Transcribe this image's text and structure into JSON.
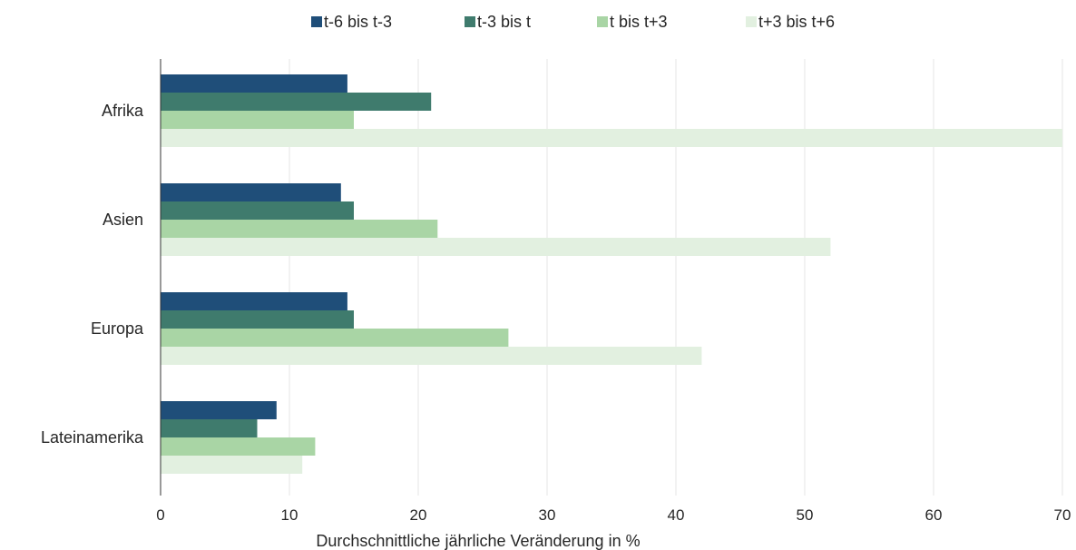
{
  "chart_data": {
    "type": "bar",
    "orientation": "horizontal",
    "categories": [
      "Afrika",
      "Asien",
      "Europa",
      "Lateinamerika"
    ],
    "series": [
      {
        "name": "t-6 bis t-3",
        "color": "#1f4e79",
        "values": [
          14.5,
          14,
          14.5,
          9
        ]
      },
      {
        "name": "t-3 bis t",
        "color": "#3f7b6d",
        "values": [
          21,
          15,
          15,
          7.5
        ]
      },
      {
        "name": "t bis t+3",
        "color": "#a9d5a5",
        "values": [
          15,
          21.5,
          27,
          12
        ]
      },
      {
        "name": "t+3 bis t+6",
        "color": "#e2f0e0",
        "values": [
          70,
          52,
          42,
          11
        ]
      }
    ],
    "xlabel": "Durchschnittliche jährliche Veränderung in %",
    "ylabel": "",
    "xlim": [
      0,
      70
    ],
    "xticks": [
      0,
      10,
      20,
      30,
      40,
      50,
      60,
      70
    ],
    "grid": "vertical",
    "legend_position": "top"
  }
}
